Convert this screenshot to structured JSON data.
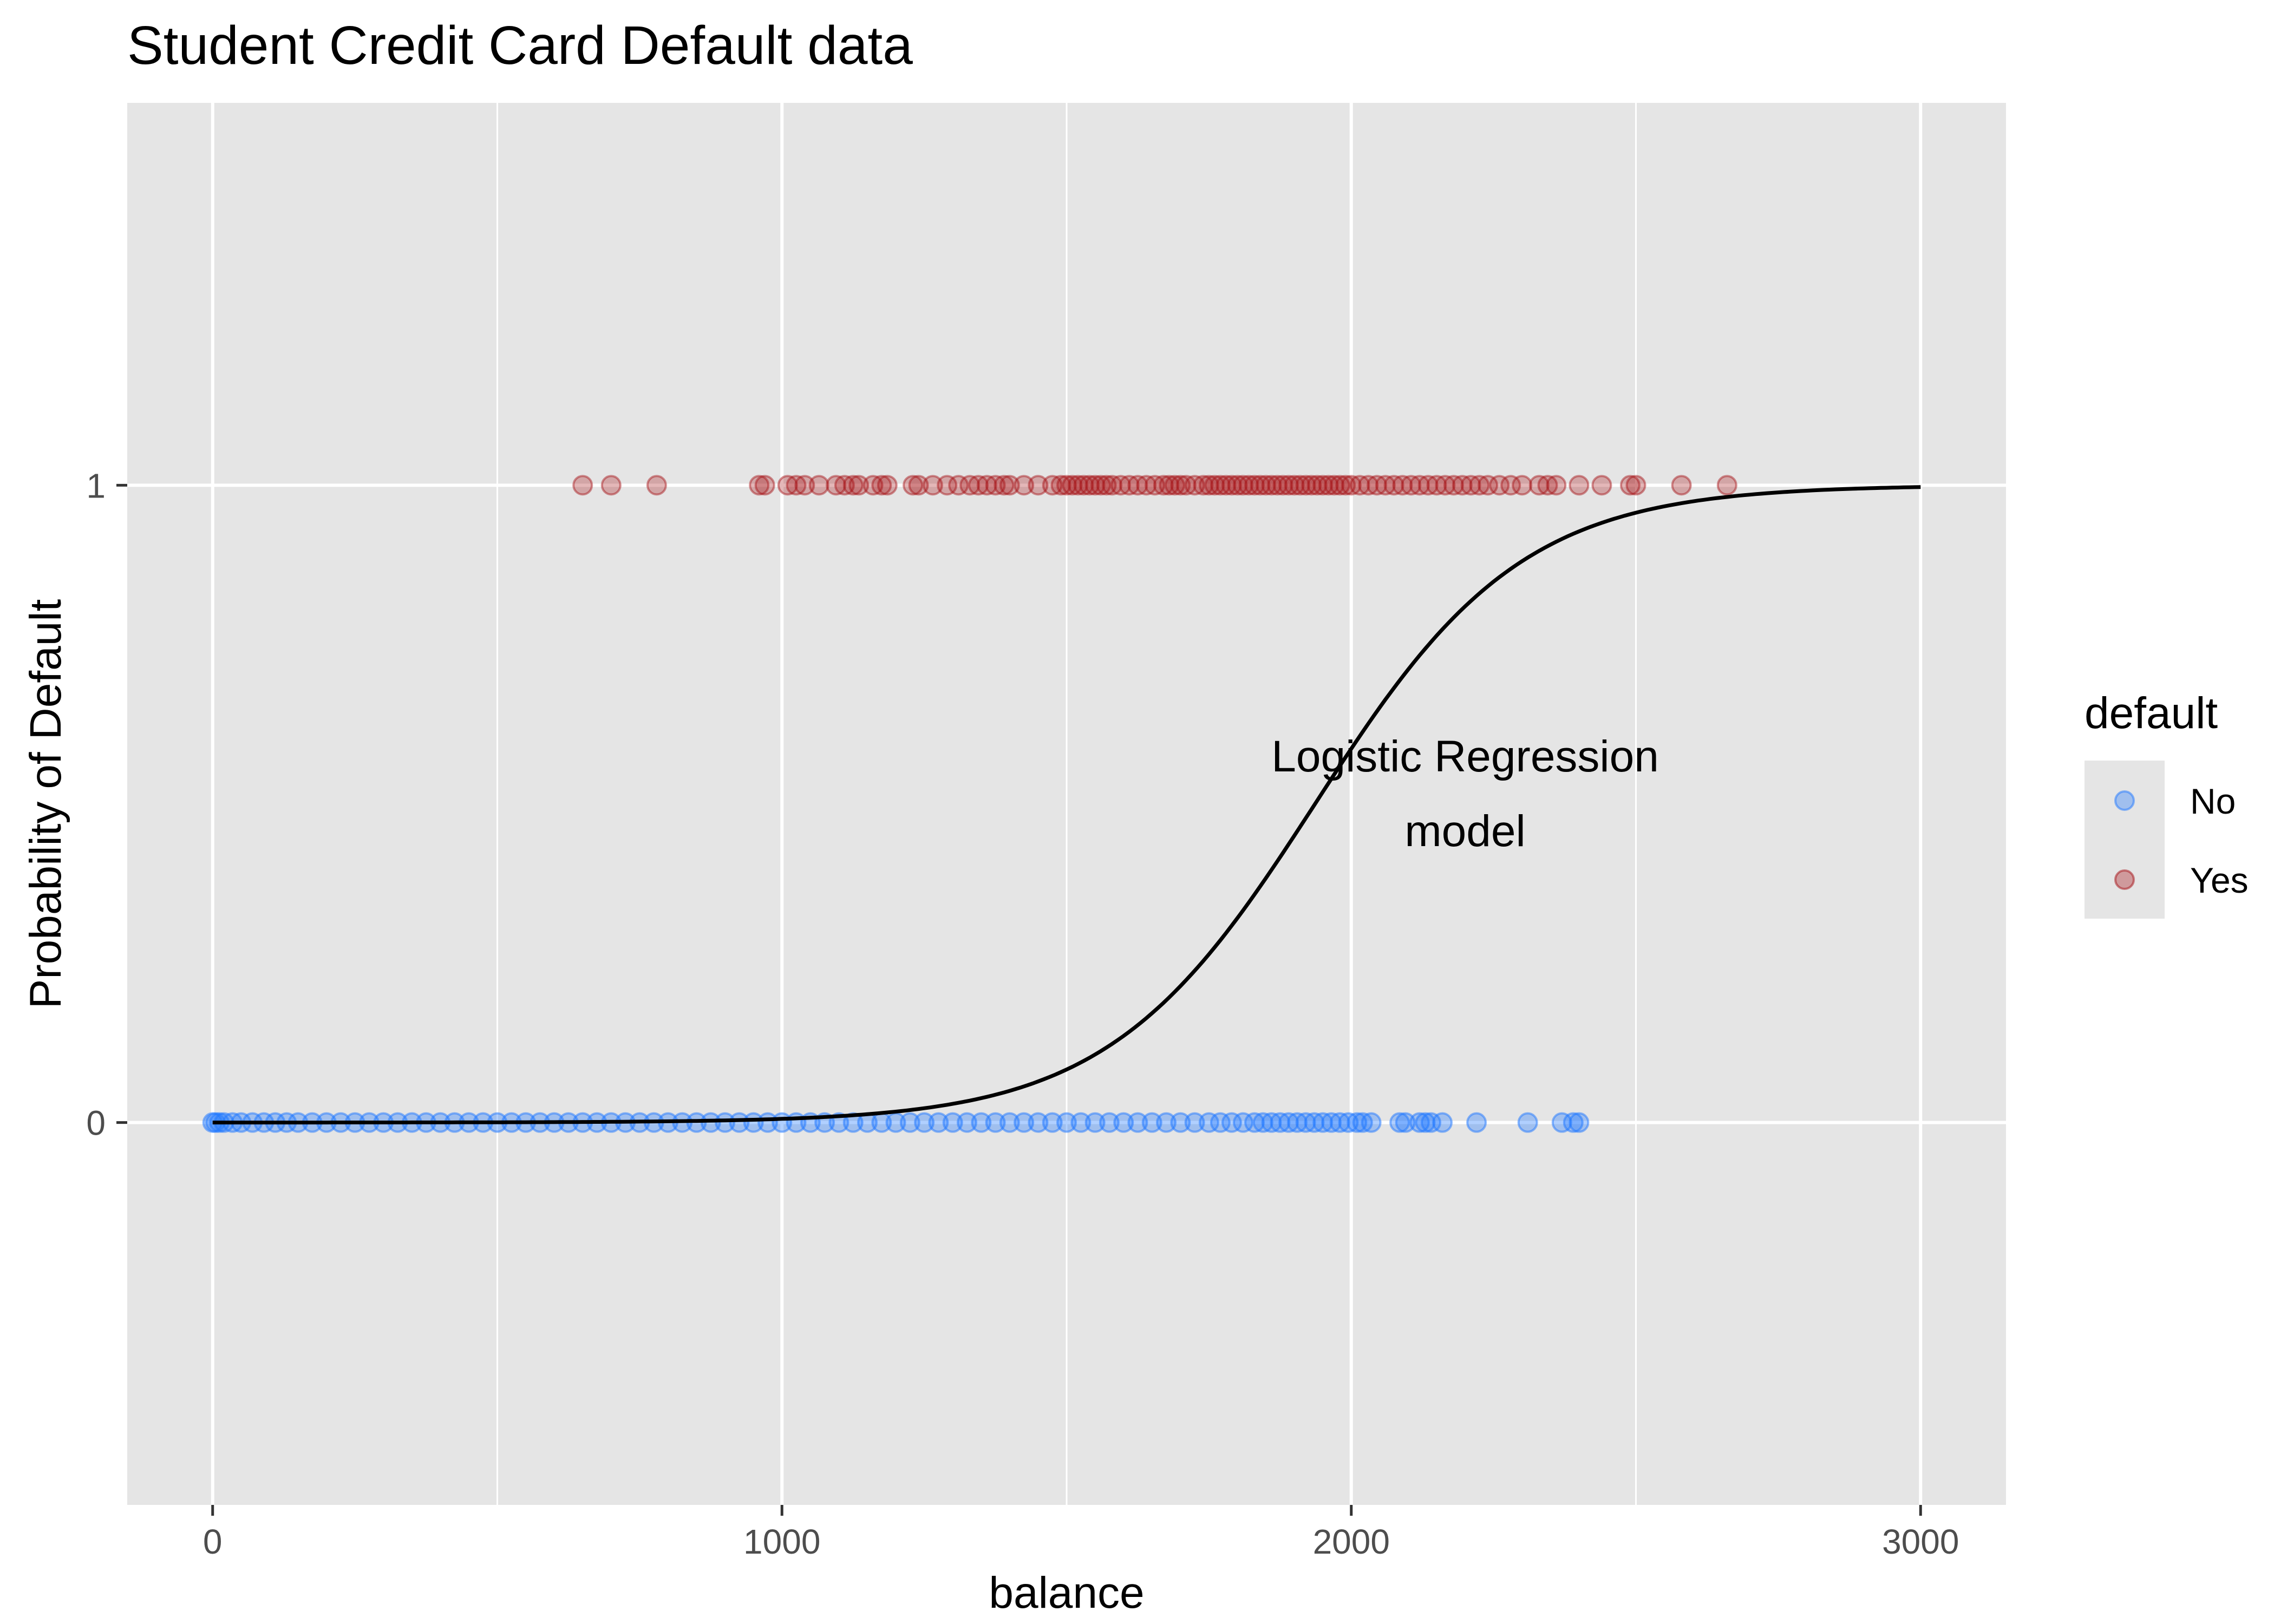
{
  "chart_data": {
    "type": "scatter",
    "title": "Student Credit Card Default data",
    "xlabel": "balance",
    "ylabel": "Probability of Default",
    "xlim": [
      -150,
      3150
    ],
    "ylim": [
      -0.6,
      1.6
    ],
    "x_ticks": [
      0,
      1000,
      2000,
      3000
    ],
    "x_tick_labels": [
      "0",
      "1000",
      "2000",
      "3000"
    ],
    "y_ticks": [
      0,
      1
    ],
    "y_tick_labels": [
      "0",
      "1"
    ],
    "grid": true,
    "background": "#e5e5e5",
    "legend": {
      "title": "default",
      "position": "right",
      "entries": [
        {
          "label": "No",
          "color": "#1f78ff"
        },
        {
          "label": "Yes",
          "color": "#a50f15"
        }
      ]
    },
    "series": [
      {
        "name": "No",
        "y": 0,
        "color": "#1f78ff",
        "opacity": 0.35,
        "x": [
          0,
          5,
          12,
          20,
          35,
          50,
          70,
          90,
          110,
          130,
          150,
          175,
          200,
          225,
          250,
          275,
          300,
          325,
          350,
          375,
          400,
          425,
          450,
          475,
          500,
          525,
          550,
          575,
          600,
          625,
          650,
          675,
          700,
          725,
          750,
          775,
          800,
          825,
          850,
          875,
          900,
          925,
          950,
          975,
          1000,
          1025,
          1050,
          1075,
          1100,
          1125,
          1150,
          1175,
          1200,
          1225,
          1250,
          1275,
          1300,
          1325,
          1350,
          1375,
          1400,
          1425,
          1450,
          1475,
          1500,
          1525,
          1550,
          1575,
          1600,
          1625,
          1650,
          1675,
          1700,
          1725,
          1750,
          1770,
          1790,
          1810,
          1830,
          1845,
          1860,
          1875,
          1890,
          1905,
          1920,
          1935,
          1950,
          1965,
          1980,
          1995,
          2010,
          2020,
          2035,
          2085,
          2095,
          2120,
          2130,
          2140,
          2160,
          2220,
          2310,
          2370,
          2390,
          2400
        ]
      },
      {
        "name": "Yes",
        "y": 1,
        "color": "#a50f15",
        "opacity": 0.3,
        "x": [
          650,
          700,
          780,
          960,
          970,
          1010,
          1025,
          1040,
          1065,
          1095,
          1110,
          1125,
          1135,
          1160,
          1175,
          1185,
          1230,
          1240,
          1265,
          1290,
          1310,
          1330,
          1345,
          1360,
          1375,
          1390,
          1400,
          1425,
          1450,
          1475,
          1490,
          1500,
          1510,
          1520,
          1530,
          1540,
          1550,
          1560,
          1570,
          1580,
          1595,
          1610,
          1625,
          1640,
          1655,
          1670,
          1680,
          1690,
          1700,
          1710,
          1725,
          1740,
          1750,
          1760,
          1770,
          1780,
          1790,
          1800,
          1810,
          1820,
          1830,
          1840,
          1850,
          1860,
          1870,
          1880,
          1890,
          1900,
          1910,
          1920,
          1930,
          1940,
          1950,
          1960,
          1970,
          1980,
          1990,
          2000,
          2015,
          2030,
          2045,
          2060,
          2075,
          2090,
          2105,
          2120,
          2135,
          2150,
          2165,
          2180,
          2195,
          2210,
          2225,
          2240,
          2260,
          2280,
          2300,
          2330,
          2345,
          2360,
          2400,
          2440,
          2490,
          2500,
          2580,
          2660
        ]
      }
    ],
    "curve": {
      "name": "",
      "color": "#000000",
      "x_range": [
        0,
        3000
      ],
      "intercept": -10.65,
      "slope": 0.0055
    },
    "annotation": {
      "lines": [
        "Logistic Regression",
        "model"
      ],
      "x": 2200,
      "y": 0.5
    }
  }
}
